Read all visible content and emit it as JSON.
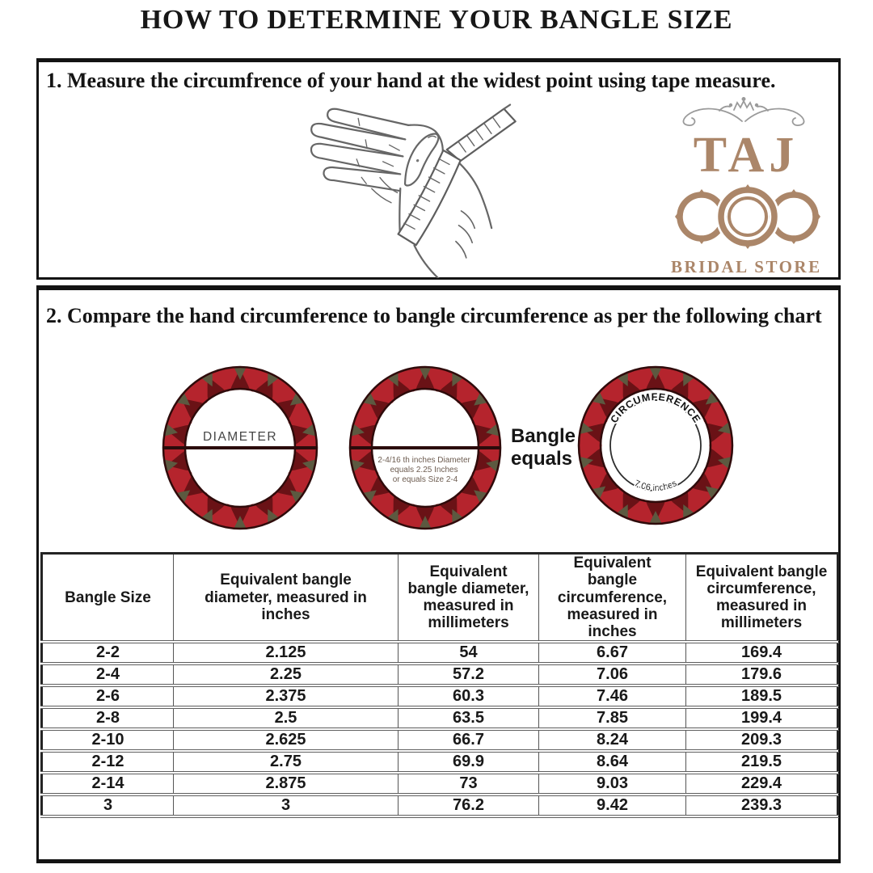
{
  "title": "HOW TO DETERMINE YOUR BANGLE SIZE",
  "section1": {
    "heading": "1. Measure the circumfrence of your hand at the widest point using tape measure.",
    "logo": {
      "name": "TAJ",
      "subtitle": "BRIDAL STORE",
      "brand_color": "#ab8669"
    }
  },
  "section2": {
    "heading": "2. Compare the hand circumference to bangle circumference as per the following chart",
    "diameter_label": "DIAMETER",
    "bangle2_caption": [
      "2-4/16 th inches Diameter",
      "equals 2.25 Inches",
      "or equals Size 2-4"
    ],
    "equals_line1": "Bangle",
    "equals_line2": "equals",
    "circumference_label": "CIRCUMFERENCE",
    "circumference_value": "7.06 inches",
    "ring_colors": {
      "base": "#6a1216",
      "red": "#b5242d",
      "olive": "#5c5940",
      "outline": "#2f0b0b"
    }
  },
  "table": {
    "headers": [
      "Bangle Size",
      "Equivalent bangle diameter, measured in inches",
      "Equivalent bangle diameter, measured in millimeters",
      "Equivalent bangle circumference, measured in inches",
      "Equivalent bangle circumference, measured in millimeters"
    ],
    "rows": [
      [
        "2-2",
        "2.125",
        "54",
        "6.67",
        "169.4"
      ],
      [
        "2-4",
        "2.25",
        "57.2",
        "7.06",
        "179.6"
      ],
      [
        "2-6",
        "2.375",
        "60.3",
        "7.46",
        "189.5"
      ],
      [
        "2-8",
        "2.5",
        "63.5",
        "7.85",
        "199.4"
      ],
      [
        "2-10",
        "2.625",
        "66.7",
        "8.24",
        "209.3"
      ],
      [
        "2-12",
        "2.75",
        "69.9",
        "8.64",
        "219.5"
      ],
      [
        "2-14",
        "2.875",
        "73",
        "9.03",
        "229.4"
      ],
      [
        "3",
        "3",
        "76.2",
        "9.42",
        "239.3"
      ]
    ]
  }
}
